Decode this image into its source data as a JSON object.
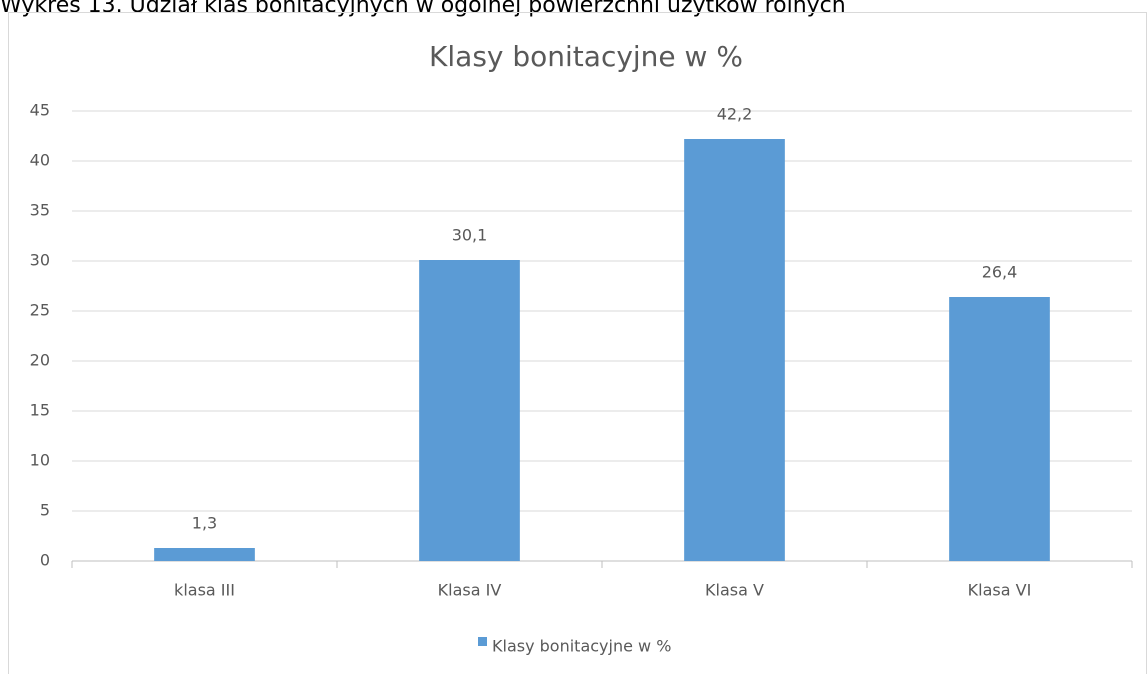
{
  "caption": "Wykres 13. Udział klas bonitacyjnych w ogólnej powierzchni użytków rolnych",
  "chart_data": {
    "type": "bar",
    "title": "Klasy bonitacyjne w %",
    "categories": [
      "klasa III",
      "Klasa IV",
      "Klasa V",
      "Klasa VI"
    ],
    "series": [
      {
        "name": "Klasy bonitacyjne w %",
        "color": "#5b9bd5",
        "values": [
          1.3,
          30.1,
          42.2,
          26.4
        ],
        "value_labels": [
          "1,3",
          "30,1",
          "42,2",
          "26,4"
        ]
      }
    ],
    "ylim": [
      0,
      45
    ],
    "yticks": [
      0,
      5,
      10,
      15,
      20,
      25,
      30,
      35,
      40,
      45
    ],
    "grid": true,
    "legend": "bottom"
  }
}
